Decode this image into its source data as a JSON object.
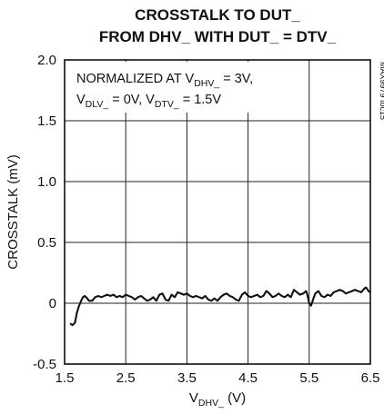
{
  "chart_data": {
    "type": "line",
    "title_lines": [
      "CROSSTALK TO DUT_",
      "FROM DHV_ WITH DUT_ = DTV_"
    ],
    "xlabel": {
      "main": "V",
      "sub": "DHV_",
      "unit": " (V)"
    },
    "ylabel": "CROSSTALK (mV)",
    "xlim": [
      1.5,
      6.5
    ],
    "ylim": [
      -0.5,
      2.0
    ],
    "xticks": [
      1.5,
      2.5,
      3.5,
      4.5,
      5.5,
      6.5
    ],
    "xtick_labels": [
      "1.5",
      "2.5",
      "3.5",
      "4.5",
      "5.5",
      "6.5"
    ],
    "yticks": [
      -0.5,
      0,
      0.5,
      1.0,
      1.5,
      2.0
    ],
    "ytick_labels": [
      "-0.5",
      "0",
      "0.5",
      "1.0",
      "1.5",
      "2.0"
    ],
    "grid": true,
    "annotation": {
      "line1": [
        {
          "text": "NORMALIZED AT V"
        },
        {
          "text": "DHV_",
          "sub": true
        },
        {
          "text": " = 3V,"
        }
      ],
      "line2": [
        {
          "text": "V"
        },
        {
          "text": "DLV_",
          "sub": true
        },
        {
          "text": " = 0V, V"
        },
        {
          "text": "DTV_",
          "sub": true
        },
        {
          "text": " = 1.5V"
        }
      ]
    },
    "side_label": "MAX9979 toc15",
    "series": [
      {
        "x": [
          1.6,
          1.63,
          1.67,
          1.7,
          1.73,
          1.77,
          1.8,
          1.83,
          1.87,
          1.9,
          1.95,
          2.0,
          2.05,
          2.1,
          2.15,
          2.2,
          2.25,
          2.3,
          2.35,
          2.4,
          2.45,
          2.5,
          2.55,
          2.6,
          2.65,
          2.7,
          2.75,
          2.8,
          2.85,
          2.9,
          2.95,
          3.0,
          3.05,
          3.1,
          3.15,
          3.2,
          3.25,
          3.3,
          3.35,
          3.4,
          3.45,
          3.5,
          3.55,
          3.6,
          3.65,
          3.7,
          3.75,
          3.8,
          3.85,
          3.9,
          3.95,
          4.0,
          4.05,
          4.1,
          4.15,
          4.2,
          4.25,
          4.3,
          4.35,
          4.4,
          4.45,
          4.5,
          4.55,
          4.6,
          4.65,
          4.7,
          4.75,
          4.8,
          4.85,
          4.9,
          4.95,
          5.0,
          5.05,
          5.1,
          5.15,
          5.2,
          5.25,
          5.3,
          5.35,
          5.4,
          5.45,
          5.47,
          5.5,
          5.53,
          5.57,
          5.6,
          5.65,
          5.7,
          5.75,
          5.8,
          5.85,
          5.9,
          5.95,
          6.0,
          6.05,
          6.1,
          6.15,
          6.2,
          6.25,
          6.3,
          6.35,
          6.4,
          6.43,
          6.47,
          6.5
        ],
        "y": [
          -0.17,
          -0.18,
          -0.16,
          -0.08,
          -0.03,
          0.02,
          0.05,
          0.06,
          0.04,
          0.02,
          0.02,
          0.05,
          0.06,
          0.05,
          0.06,
          0.07,
          0.06,
          0.07,
          0.05,
          0.06,
          0.05,
          0.07,
          0.06,
          0.05,
          0.03,
          0.05,
          0.06,
          0.04,
          0.02,
          0.03,
          0.05,
          0.02,
          0.07,
          0.08,
          0.03,
          0.02,
          0.07,
          0.05,
          0.09,
          0.08,
          0.07,
          0.08,
          0.06,
          0.05,
          0.06,
          0.05,
          0.04,
          0.06,
          0.03,
          0.02,
          0.04,
          0.02,
          0.05,
          0.07,
          0.08,
          0.06,
          0.05,
          0.03,
          0.02,
          0.07,
          0.09,
          0.06,
          0.05,
          0.06,
          0.07,
          0.05,
          0.06,
          0.1,
          0.08,
          0.05,
          0.06,
          0.08,
          0.06,
          0.05,
          0.07,
          0.05,
          0.11,
          0.09,
          0.07,
          0.08,
          0.1,
          0.07,
          0.0,
          -0.02,
          0.04,
          0.08,
          0.1,
          0.06,
          0.05,
          0.07,
          0.06,
          0.09,
          0.1,
          0.11,
          0.1,
          0.08,
          0.09,
          0.1,
          0.11,
          0.1,
          0.09,
          0.12,
          0.13,
          0.1,
          0.09
        ]
      }
    ]
  }
}
